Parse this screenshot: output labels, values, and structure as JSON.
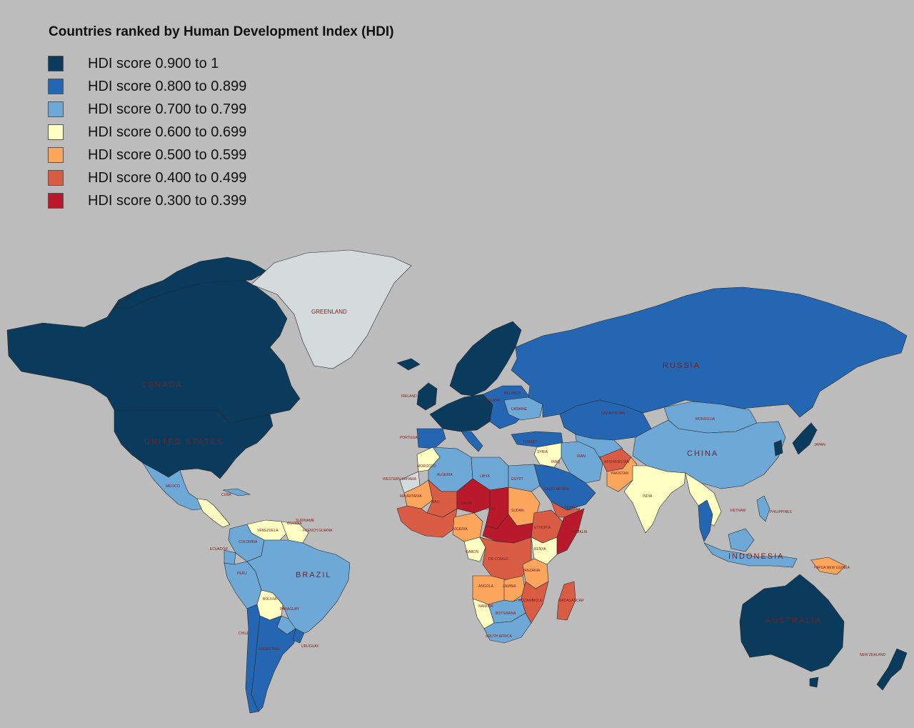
{
  "title": "Countries ranked by Human Development Index (HDI)",
  "colors": {
    "ocean": "#bcbcbc",
    "no_data": "#d5dadd",
    "tier1": "#0a3a5c",
    "tier2": "#2466b2",
    "tier3": "#6ea8d6",
    "tier4": "#ffffc4",
    "tier5": "#fba65c",
    "tier6": "#d95d45",
    "tier7": "#b81a2b",
    "label": "#7a1e1e"
  },
  "legend": [
    {
      "label": "HDI score 0.900 to 1",
      "color": "#0a3a5c"
    },
    {
      "label": "HDI score 0.800 to 0.899",
      "color": "#2466b2"
    },
    {
      "label": "HDI score 0.700 to 0.799",
      "color": "#6ea8d6"
    },
    {
      "label": "HDI score 0.600 to 0.699",
      "color": "#ffffc4"
    },
    {
      "label": "HDI score 0.500 to 0.599",
      "color": "#fba65c"
    },
    {
      "label": "HDI score 0.400 to 0.499",
      "color": "#d95d45"
    },
    {
      "label": "HDI score 0.300 to 0.399",
      "color": "#b81a2b"
    }
  ],
  "labels": {
    "greenland": "GREENLAND",
    "canada": "CANADA",
    "united_states": "UNITED STATES",
    "mexico": "MEXICO",
    "cuba": "CUBA",
    "venezuela": "VENEZUELA",
    "colombia": "COLOMBIA",
    "ecuador": "ECUADOR",
    "peru": "PERU",
    "brazil": "BRAZIL",
    "bolivia": "BOLIVIA",
    "paraguay": "PARAGUAY",
    "chile": "CHILE",
    "argentina": "ARGENTINA",
    "uruguay": "URUGUAY",
    "guyana": "GUYANA",
    "suriname": "SURINAME",
    "french_guiana": "FRENCH GUIANA",
    "russia": "RUSSIA",
    "kazakhstan": "KAZAKHSTAN",
    "mongolia": "MONGOLIA",
    "china": "CHINA",
    "japan": "JAPAN",
    "iran": "IRAN",
    "iraq": "IRAQ",
    "syria": "SYRIA",
    "turkey": "TURKEY",
    "ukraine": "UKRAINE",
    "belarus": "BELARUS",
    "poland": "POLAND",
    "ireland": "IRELAND",
    "portugal": "PORTUGAL",
    "pakistan": "PAKISTAN",
    "afghanistan": "AFGHANISTAN",
    "india": "INDIA",
    "saudi_arabia": "SAUDI ARABIA",
    "yemen": "YEMEN",
    "egypt": "EGYPT",
    "libya": "LIBYA",
    "algeria": "ALGERIA",
    "morocco": "MOROCCO",
    "western_sahara": "WESTERN SAHARA",
    "mauritania": "MAURITANIA",
    "mali": "MALI",
    "niger": "NIGER",
    "chad": "CHAD",
    "sudan": "SUDAN",
    "nigeria": "NIGERIA",
    "ethiopia": "ETHIOPIA",
    "somalia": "SOMALIA",
    "kenya": "KENYA",
    "dr_congo": "DR CONGO",
    "gabon": "GABON",
    "tanzania": "TANZANIA",
    "angola": "ANGOLA",
    "zambia": "ZAMBIA",
    "namibia": "NAMIBIA",
    "botswana": "BOTSWANA",
    "mozambique": "MOZAMBIQUE",
    "madagascar": "MADAGASCAR",
    "south_africa": "SOUTH AFRICA",
    "philippines": "PHILIPPINES",
    "vietnam": "VIETNAM",
    "indonesia": "INDONESIA",
    "papua_new_guinea": "PAPUA NEW GUINEA",
    "australia": "AUSTRALIA",
    "new_zealand": "NEW ZEALAND"
  }
}
